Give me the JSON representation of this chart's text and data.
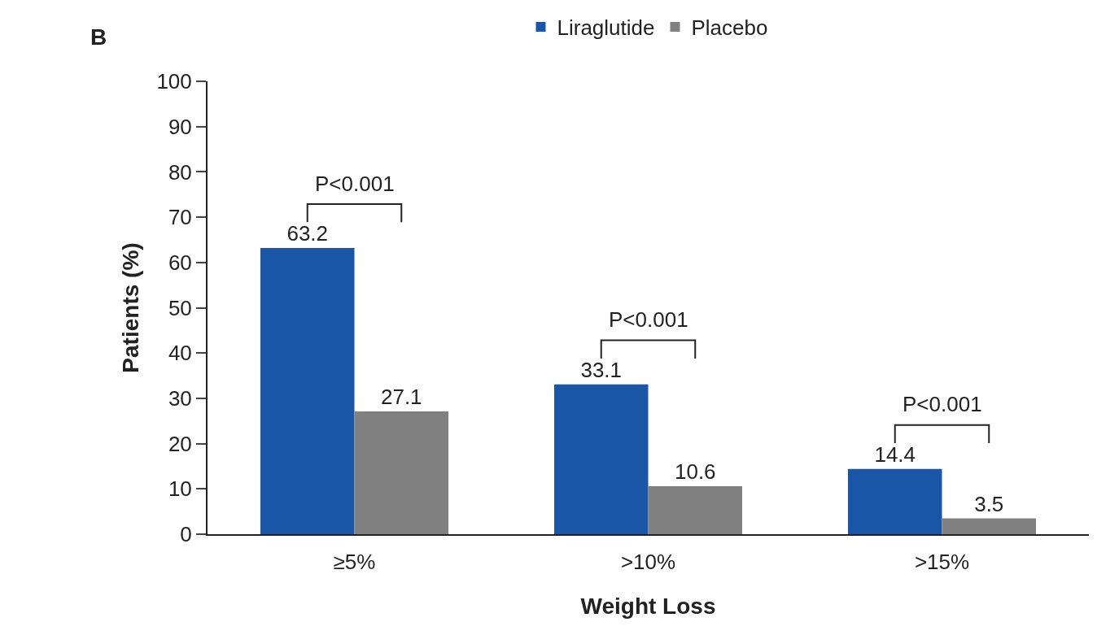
{
  "chart_data": {
    "type": "bar",
    "title": "B",
    "xlabel": "Weight Loss",
    "ylabel": "Patients (%)",
    "categories": [
      "≥5%",
      ">10%",
      ">15%"
    ],
    "series": [
      {
        "name": "Liraglutide",
        "color": "#1b56a6",
        "values": [
          63.2,
          33.1,
          14.4
        ]
      },
      {
        "name": "Placebo",
        "color": "#808080",
        "values": [
          27.1,
          10.6,
          3.5
        ]
      }
    ],
    "ylim": [
      0,
      100
    ],
    "yticks": [
      0,
      10,
      20,
      30,
      40,
      50,
      60,
      70,
      80,
      90,
      100
    ],
    "grid": false,
    "legend": "top",
    "data_labels": true,
    "annotations": [
      "P<0.001",
      "P<0.001",
      "P<0.001"
    ]
  }
}
